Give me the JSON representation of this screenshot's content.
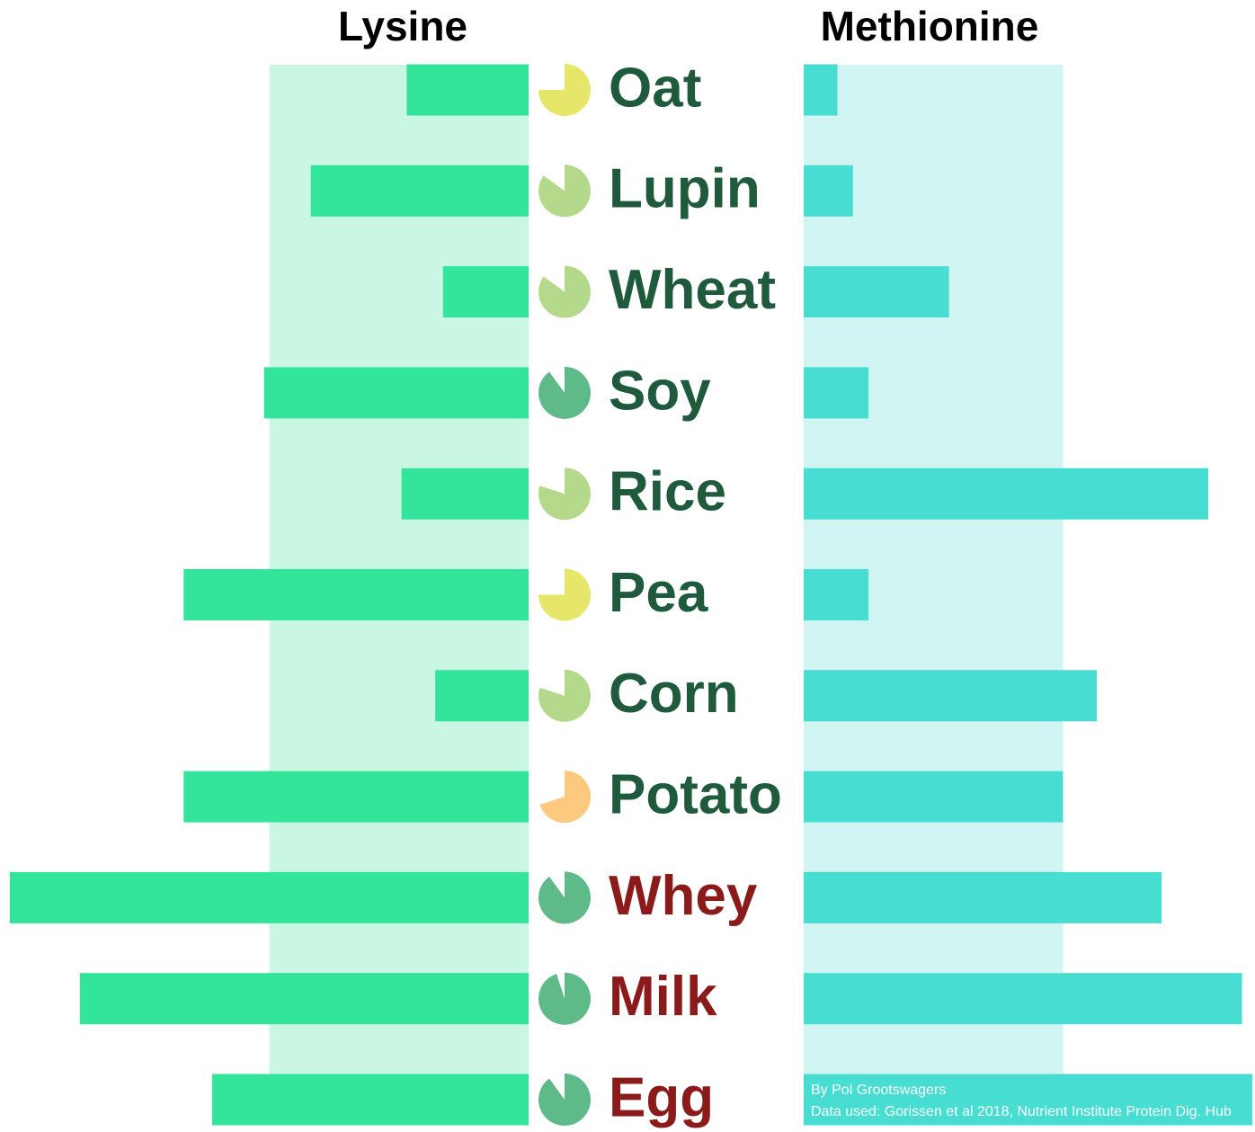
{
  "chart_data": {
    "type": "diverging-bar",
    "left_title": "Lysine",
    "right_title": "Methionine",
    "categories": [
      "Oat",
      "Lupin",
      "Wheat",
      "Soy",
      "Rice",
      "Pea",
      "Corn",
      "Potato",
      "Whey",
      "Milk",
      "Egg"
    ],
    "label_colors": [
      "#1f5a3c",
      "#1f5a3c",
      "#1f5a3c",
      "#1f5a3c",
      "#1f5a3c",
      "#1f5a3c",
      "#1f5a3c",
      "#1f5a3c",
      "#8b1a1a",
      "#8b1a1a",
      "#8b1a1a"
    ],
    "series": [
      {
        "name": "Lysine",
        "color": "#33e59a",
        "values": [
          47,
          84,
          33,
          102,
          49,
          133,
          36,
          133,
          200,
          173,
          122
        ]
      },
      {
        "name": "Methionine",
        "color": "#48ddd3",
        "values": [
          13,
          19,
          56,
          25,
          156,
          25,
          113,
          100,
          138,
          169,
          173
        ]
      }
    ],
    "pie_values": [
      75,
      85,
      85,
      90,
      80,
      75,
      80,
      70,
      90,
      95,
      90
    ],
    "pie_colors": [
      "#e6e66a",
      "#b5d98a",
      "#b5d98a",
      "#5fba8a",
      "#b5d98a",
      "#e6e66a",
      "#b5d98a",
      "#fcc97f",
      "#5fba8a",
      "#5fba8a",
      "#5fba8a"
    ],
    "xlim": [
      0,
      200
    ],
    "reference_band": 100,
    "band_colors": [
      "#caf7e3",
      "#d1f5f2"
    ],
    "credits": [
      "By Pol Grootswagers",
      "Data used: Gorissen et al 2018, Nutrient Institute Protein Dig. Hub"
    ]
  }
}
